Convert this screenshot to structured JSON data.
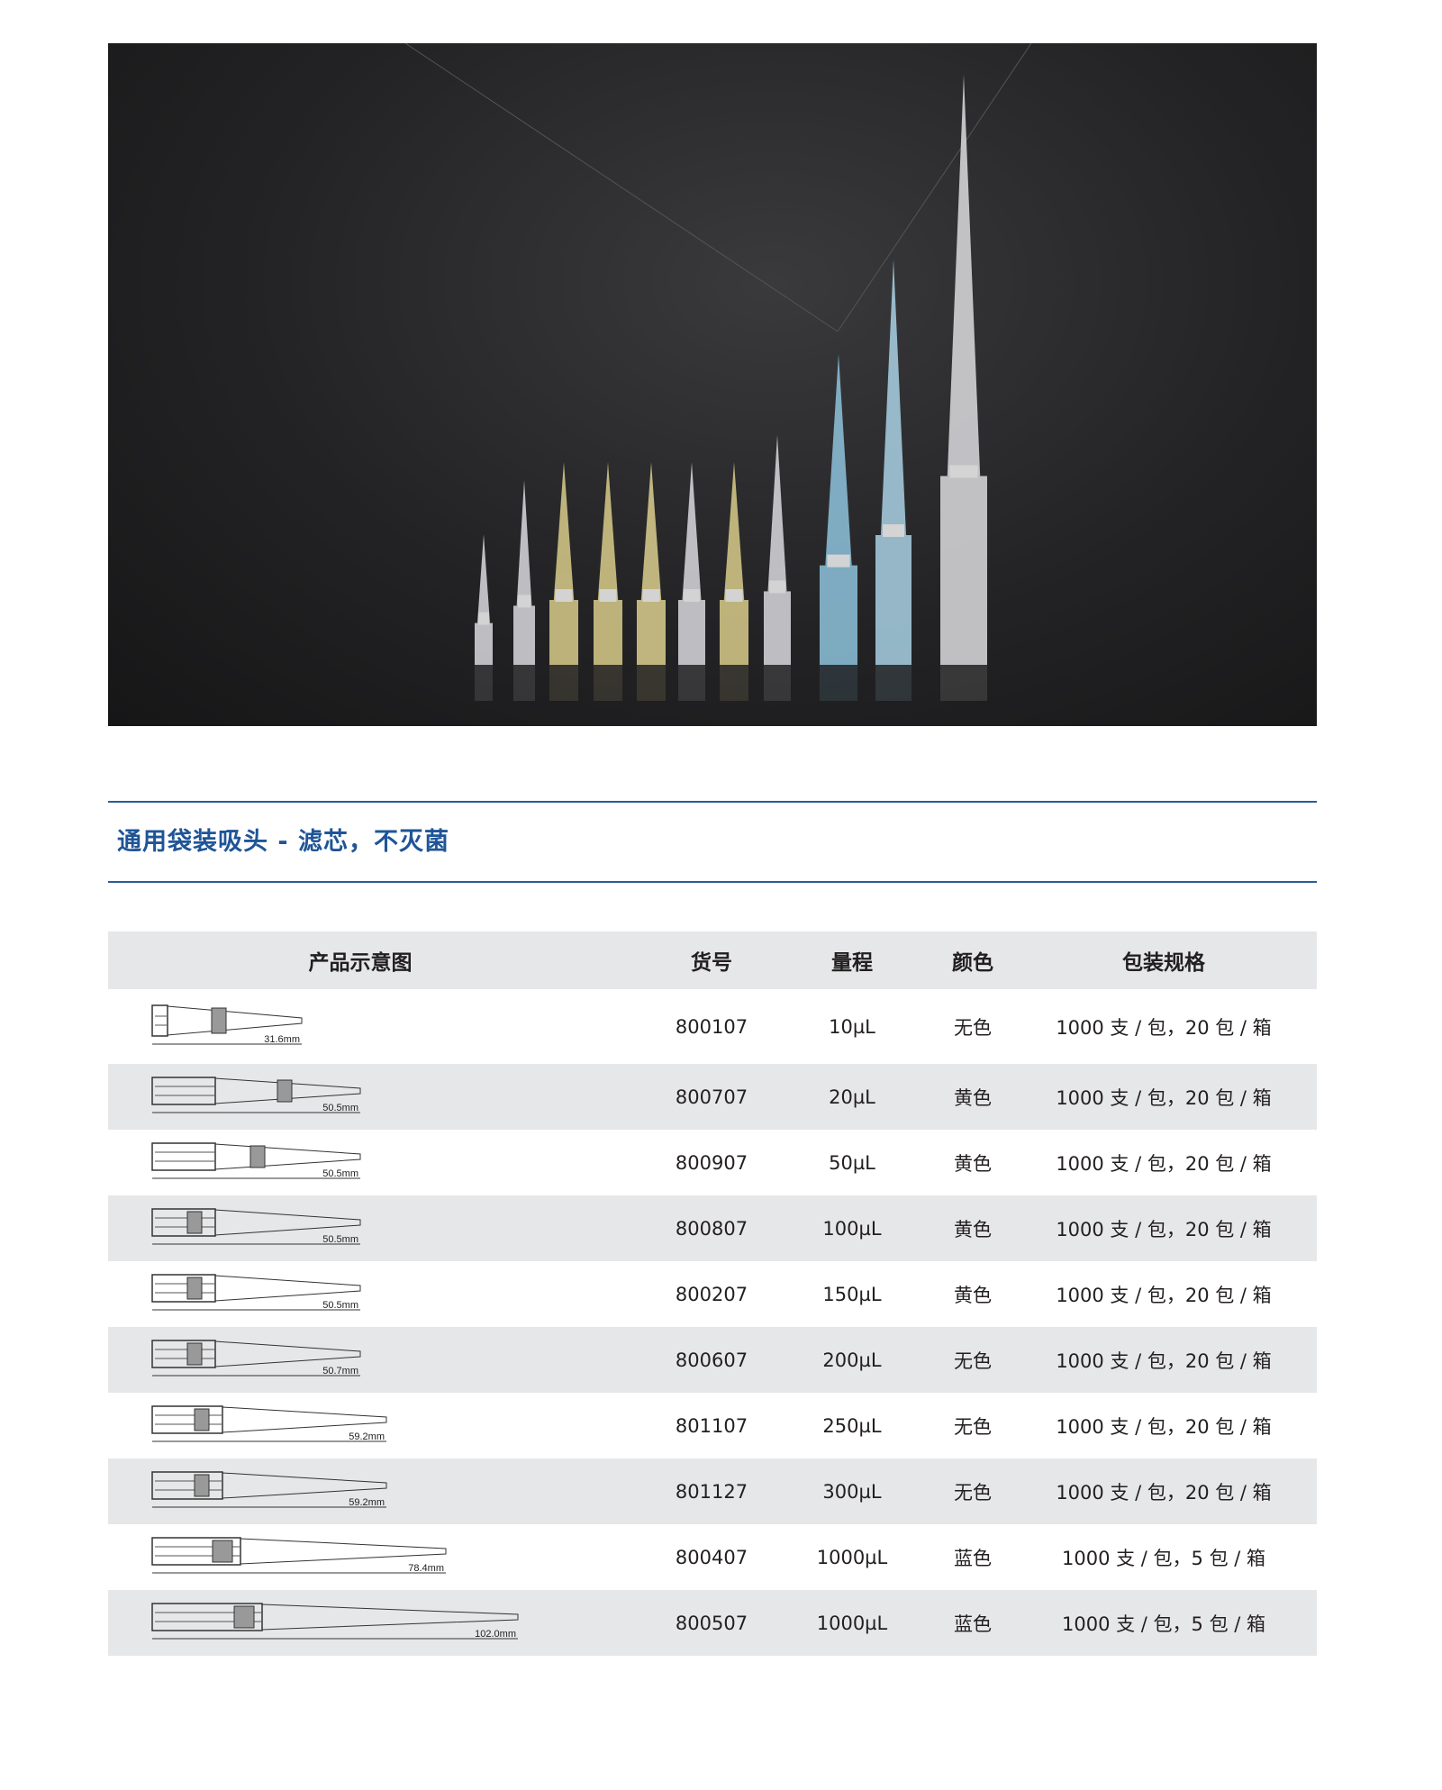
{
  "photo": {
    "tip_colors": [
      "#d9d9de",
      "#d9d9de",
      "#d8cc8a",
      "#d8cc8a",
      "#dccf8e",
      "#d9d9de",
      "#d8cc8a",
      "#d9d9de",
      "#8ec3dc",
      "#a9d1e4",
      "#dcdcdf"
    ],
    "background": "#232325"
  },
  "section_title": "通用袋装吸头 - 滤芯，不灭菌",
  "accent_color": "#1f5597",
  "table": {
    "headers": [
      "产品示意图",
      "货号",
      "量程",
      "颜色",
      "包装规格"
    ],
    "rows": [
      {
        "length": "31.6mm",
        "mm": 31.6,
        "sku": "800107",
        "volume": "10µL",
        "color": "无色",
        "pack": "1000 支 / 包，20 包 / 箱"
      },
      {
        "length": "50.5mm",
        "mm": 50.5,
        "sku": "800707",
        "volume": "20µL",
        "color": "黄色",
        "pack": "1000 支 / 包，20 包 / 箱"
      },
      {
        "length": "50.5mm",
        "mm": 50.5,
        "sku": "800907",
        "volume": "50µL",
        "color": "黄色",
        "pack": "1000 支 / 包，20 包 / 箱"
      },
      {
        "length": "50.5mm",
        "mm": 50.5,
        "sku": "800807",
        "volume": "100µL",
        "color": "黄色",
        "pack": "1000 支 / 包，20 包 / 箱"
      },
      {
        "length": "50.5mm",
        "mm": 50.5,
        "sku": "800207",
        "volume": "150µL",
        "color": "黄色",
        "pack": "1000 支 / 包，20 包 / 箱"
      },
      {
        "length": "50.7mm",
        "mm": 50.7,
        "sku": "800607",
        "volume": "200µL",
        "color": "无色",
        "pack": "1000 支 / 包，20 包 / 箱"
      },
      {
        "length": "59.2mm",
        "mm": 59.2,
        "sku": "801107",
        "volume": "250µL",
        "color": "无色",
        "pack": "1000 支 / 包，20 包 / 箱"
      },
      {
        "length": "59.2mm",
        "mm": 59.2,
        "sku": "801127",
        "volume": "300µL",
        "color": "无色",
        "pack": "1000 支 / 包，20 包 / 箱"
      },
      {
        "length": "78.4mm",
        "mm": 78.4,
        "sku": "800407",
        "volume": "1000µL",
        "color": "蓝色",
        "pack": "1000 支 / 包，5 包 / 箱"
      },
      {
        "length": "102.0mm",
        "mm": 102.0,
        "sku": "800507",
        "volume": "1000µL",
        "color": "蓝色",
        "pack": "1000 支 / 包，5 包 / 箱"
      }
    ]
  }
}
